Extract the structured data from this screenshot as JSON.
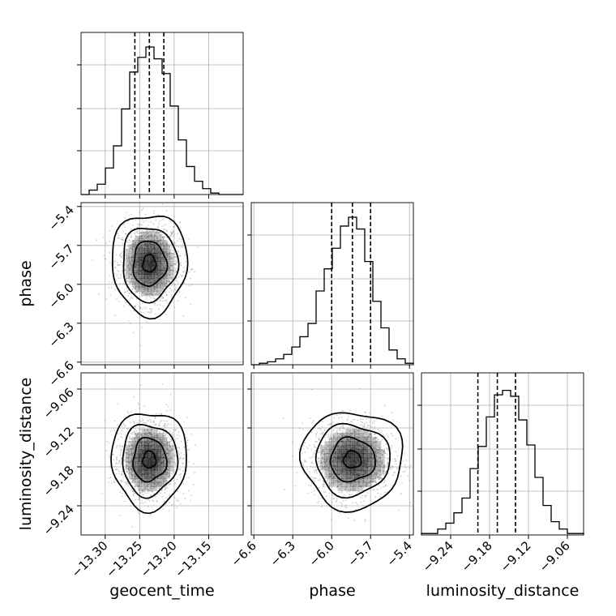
{
  "chart_data": {
    "type": "corner",
    "parameters": [
      "geocent_time",
      "phase",
      "luminosity_distance"
    ],
    "axis_labels": {
      "geocent_time": "geocent_time",
      "phase": "phase",
      "luminosity_distance": "luminosity_distance"
    },
    "ranges": {
      "geocent_time": [
        -13.335,
        -13.1
      ],
      "phase": [
        -6.62,
        -5.37
      ],
      "luminosity_distance": [
        -9.285,
        -9.035
      ]
    },
    "ticks": {
      "geocent_time": {
        "values": [
          -13.3,
          -13.25,
          -13.2,
          -13.15
        ],
        "labels": [
          "−13.30",
          "−13.25",
          "−13.20",
          "−13.15"
        ]
      },
      "phase": {
        "values": [
          -6.6,
          -6.3,
          -6.0,
          -5.7,
          -5.4
        ],
        "labels": [
          "−6.6",
          "−6.3",
          "−6.0",
          "−5.7",
          "−5.4"
        ]
      },
      "luminosity_distance": {
        "values": [
          -9.24,
          -9.18,
          -9.12,
          -9.06
        ],
        "labels": [
          "−9.24",
          "−9.18",
          "−9.12",
          "−9.06"
        ]
      }
    },
    "quantiles": {
      "geocent_time": [
        -13.257,
        -13.236,
        -13.215
      ],
      "phase": [
        -6.0,
        -5.84,
        -5.7
      ],
      "luminosity_distance": [
        -9.198,
        -9.168,
        -9.14
      ]
    },
    "histograms": {
      "geocent_time": [
        0.0,
        0.03,
        0.07,
        0.18,
        0.33,
        0.58,
        0.83,
        0.93,
        1.0,
        0.92,
        0.82,
        0.6,
        0.37,
        0.19,
        0.09,
        0.04,
        0.01,
        0.0,
        0.0,
        0.0
      ],
      "phase": [
        0.0,
        0.01,
        0.02,
        0.04,
        0.07,
        0.12,
        0.19,
        0.28,
        0.5,
        0.65,
        0.79,
        0.94,
        1.0,
        0.92,
        0.7,
        0.43,
        0.25,
        0.1,
        0.04,
        0.01
      ],
      "luminosity_distance": [
        0.01,
        0.01,
        0.04,
        0.08,
        0.15,
        0.25,
        0.45,
        0.6,
        0.8,
        0.95,
        0.98,
        0.94,
        0.78,
        0.61,
        0.39,
        0.2,
        0.09,
        0.04,
        0.01,
        0.01
      ]
    },
    "centers": {
      "geocent_time": -13.236,
      "phase": -5.84,
      "luminosity_distance": -9.169
    },
    "sigmas": {
      "geocent_time": 0.021,
      "phase": 0.15,
      "luminosity_distance": 0.029
    },
    "grid": true,
    "colors": {
      "line": "#000000",
      "grid": "#b0b0b0",
      "points": "#777777",
      "density": "#000000"
    }
  }
}
